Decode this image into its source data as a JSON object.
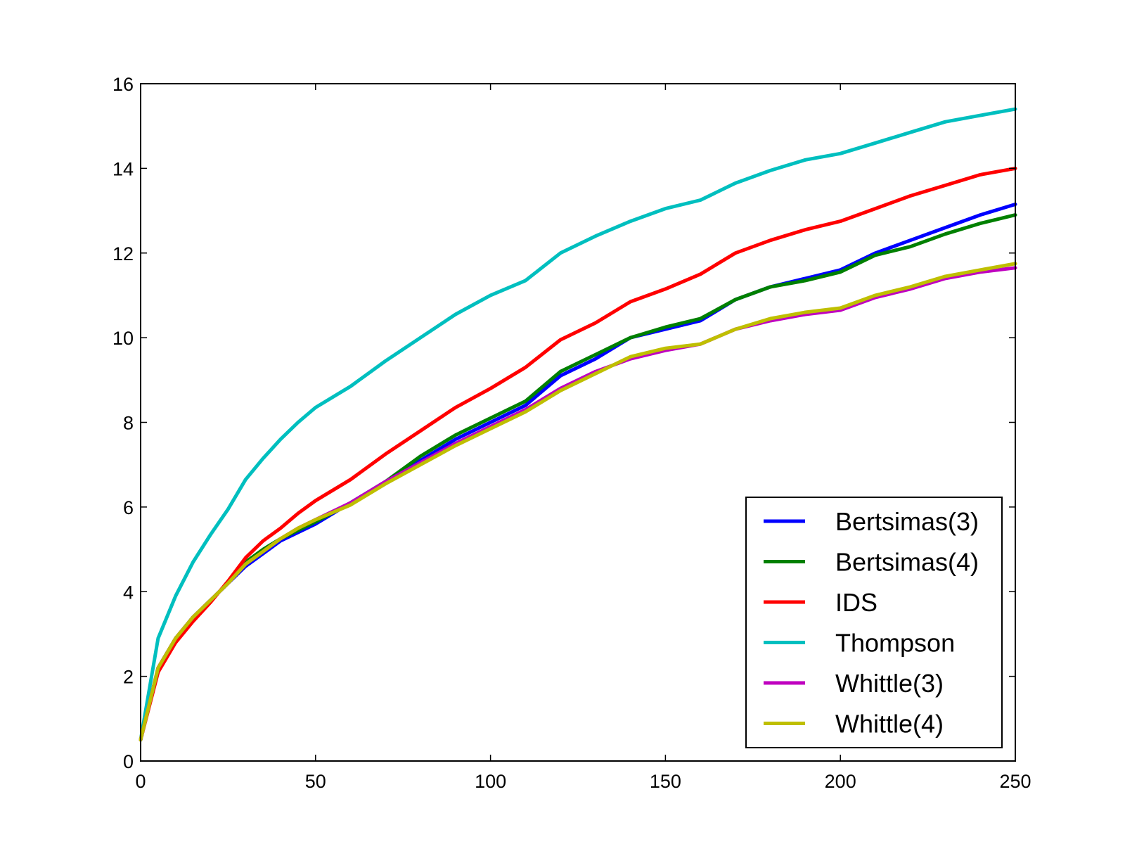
{
  "chart_data": {
    "type": "line",
    "title": "",
    "xlabel": "",
    "ylabel": "",
    "xlim": [
      0,
      250
    ],
    "ylim": [
      0,
      16
    ],
    "x_ticks": [
      "0",
      "50",
      "100",
      "150",
      "200",
      "250"
    ],
    "y_ticks": [
      "0",
      "2",
      "4",
      "6",
      "8",
      "10",
      "12",
      "14",
      "16"
    ],
    "grid": false,
    "legend_position": "bottom-right",
    "x": [
      0,
      5,
      10,
      15,
      20,
      25,
      30,
      35,
      40,
      45,
      50,
      60,
      70,
      80,
      90,
      100,
      110,
      120,
      130,
      140,
      150,
      160,
      170,
      180,
      190,
      200,
      210,
      220,
      230,
      240,
      250
    ],
    "series": [
      {
        "name": "Bertsimas(3)",
        "color": "#0000ff",
        "values": [
          0.5,
          2.2,
          2.9,
          3.4,
          3.8,
          4.2,
          4.6,
          4.9,
          5.2,
          5.4,
          5.6,
          6.1,
          6.6,
          7.1,
          7.6,
          8.0,
          8.4,
          9.1,
          9.5,
          10.0,
          10.2,
          10.4,
          10.9,
          11.2,
          11.4,
          11.6,
          12.0,
          12.3,
          12.6,
          12.9,
          13.15
        ]
      },
      {
        "name": "Bertsimas(4)",
        "color": "#008000",
        "values": [
          0.5,
          2.2,
          2.9,
          3.4,
          3.8,
          4.2,
          4.7,
          5.0,
          5.25,
          5.45,
          5.65,
          6.1,
          6.6,
          7.2,
          7.7,
          8.1,
          8.5,
          9.2,
          9.6,
          10.0,
          10.25,
          10.45,
          10.9,
          11.2,
          11.35,
          11.55,
          11.95,
          12.15,
          12.45,
          12.7,
          12.9
        ]
      },
      {
        "name": "IDS",
        "color": "#ff0000",
        "values": [
          0.5,
          2.1,
          2.8,
          3.3,
          3.75,
          4.25,
          4.8,
          5.2,
          5.5,
          5.85,
          6.15,
          6.65,
          7.25,
          7.8,
          8.35,
          8.8,
          9.3,
          9.95,
          10.35,
          10.85,
          11.15,
          11.5,
          12.0,
          12.3,
          12.55,
          12.75,
          13.05,
          13.35,
          13.6,
          13.85,
          14.0
        ]
      },
      {
        "name": "Thompson",
        "color": "#00bfbf",
        "values": [
          0.5,
          2.9,
          3.9,
          4.7,
          5.35,
          5.95,
          6.65,
          7.15,
          7.6,
          8.0,
          8.35,
          8.85,
          9.45,
          10.0,
          10.55,
          11.0,
          11.35,
          12.0,
          12.4,
          12.75,
          13.05,
          13.25,
          13.65,
          13.95,
          14.2,
          14.35,
          14.6,
          14.85,
          15.1,
          15.25,
          15.4
        ]
      },
      {
        "name": "Whittle(3)",
        "color": "#bf00bf",
        "values": [
          0.5,
          2.2,
          2.9,
          3.4,
          3.8,
          4.2,
          4.65,
          4.95,
          5.25,
          5.5,
          5.7,
          6.1,
          6.6,
          7.05,
          7.5,
          7.9,
          8.3,
          8.8,
          9.2,
          9.5,
          9.7,
          9.85,
          10.2,
          10.4,
          10.55,
          10.65,
          10.95,
          11.15,
          11.4,
          11.55,
          11.65
        ]
      },
      {
        "name": "Whittle(4)",
        "color": "#bfbf00",
        "values": [
          0.5,
          2.2,
          2.9,
          3.4,
          3.8,
          4.2,
          4.65,
          4.95,
          5.25,
          5.5,
          5.7,
          6.05,
          6.55,
          7.0,
          7.45,
          7.85,
          8.25,
          8.75,
          9.15,
          9.55,
          9.75,
          9.85,
          10.2,
          10.45,
          10.6,
          10.7,
          11.0,
          11.2,
          11.45,
          11.6,
          11.75
        ]
      }
    ]
  }
}
